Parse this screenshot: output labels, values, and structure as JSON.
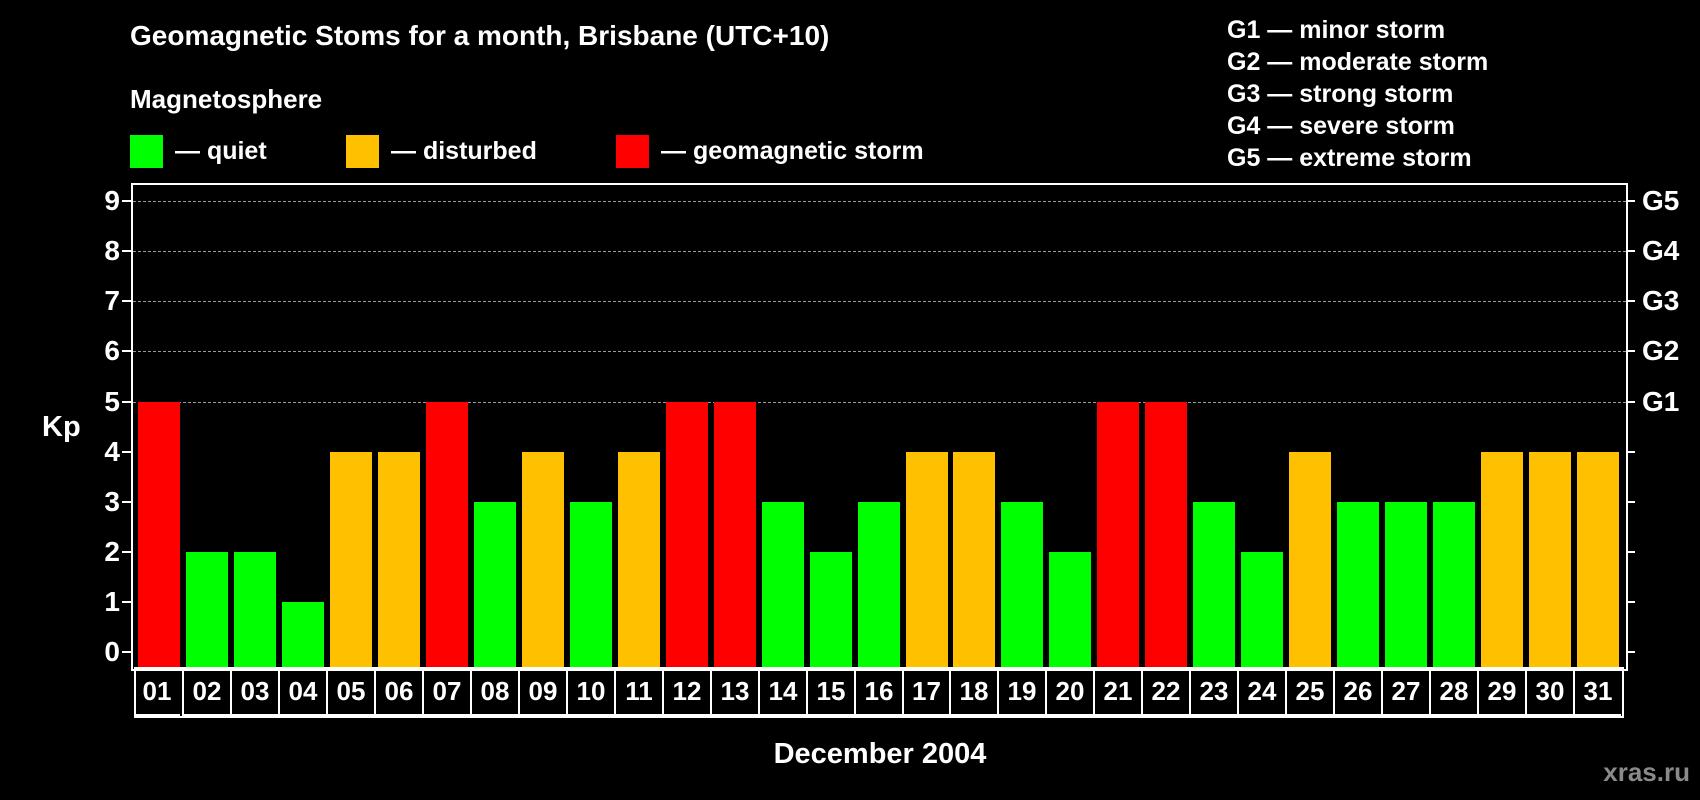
{
  "header": {
    "title": "Geomagnetic Stoms for a month, Brisbane (UTC+10)",
    "magnetosphere_label": "Magnetosphere"
  },
  "legend": {
    "items": [
      {
        "label": "— quiet",
        "color": "#00ff00"
      },
      {
        "label": "— disturbed",
        "color": "#ffc000"
      },
      {
        "label": "— geomagnetic storm",
        "color": "#ff0000"
      }
    ]
  },
  "g_scale_legend": [
    "G1 — minor storm",
    "G2 — moderate storm",
    "G3 — strong storm",
    "G4 — severe storm",
    "G5 — extreme storm"
  ],
  "axes": {
    "ylabel": "Kp",
    "xlabel": "December 2004",
    "yticks": [
      "0",
      "1",
      "2",
      "3",
      "4",
      "5",
      "6",
      "7",
      "8",
      "9"
    ],
    "right_ticks": [
      {
        "kp": 5,
        "label": "G1"
      },
      {
        "kp": 6,
        "label": "G2"
      },
      {
        "kp": 7,
        "label": "G3"
      },
      {
        "kp": 8,
        "label": "G4"
      },
      {
        "kp": 9,
        "label": "G5"
      }
    ]
  },
  "watermark": "xras.ru",
  "chart_data": {
    "type": "bar",
    "title": "Geomagnetic Stoms for a month, Brisbane (UTC+10)",
    "xlabel": "December 2004",
    "ylabel": "Kp",
    "ylim": [
      0,
      9
    ],
    "grid": true,
    "legend_position": "top",
    "categories": [
      "01",
      "02",
      "03",
      "04",
      "05",
      "06",
      "07",
      "08",
      "09",
      "10",
      "11",
      "12",
      "13",
      "14",
      "15",
      "16",
      "17",
      "18",
      "19",
      "20",
      "21",
      "22",
      "23",
      "24",
      "25",
      "26",
      "27",
      "28",
      "29",
      "30",
      "31"
    ],
    "values": [
      5,
      2,
      2,
      1,
      4,
      4,
      5,
      3,
      4,
      3,
      4,
      5,
      5,
      3,
      2,
      3,
      4,
      4,
      3,
      2,
      5,
      5,
      3,
      2,
      4,
      3,
      3,
      3,
      4,
      4,
      4
    ],
    "status": [
      "storm",
      "quiet",
      "quiet",
      "quiet",
      "disturbed",
      "disturbed",
      "storm",
      "quiet",
      "disturbed",
      "quiet",
      "disturbed",
      "storm",
      "storm",
      "quiet",
      "quiet",
      "quiet",
      "disturbed",
      "disturbed",
      "quiet",
      "quiet",
      "storm",
      "storm",
      "quiet",
      "quiet",
      "disturbed",
      "quiet",
      "quiet",
      "quiet",
      "disturbed",
      "disturbed",
      "disturbed"
    ],
    "colors": {
      "quiet": "#00ff00",
      "disturbed": "#ffc000",
      "storm": "#ff0000"
    },
    "right_axis_labels": {
      "5": "G1",
      "6": "G2",
      "7": "G3",
      "8": "G4",
      "9": "G5"
    }
  }
}
